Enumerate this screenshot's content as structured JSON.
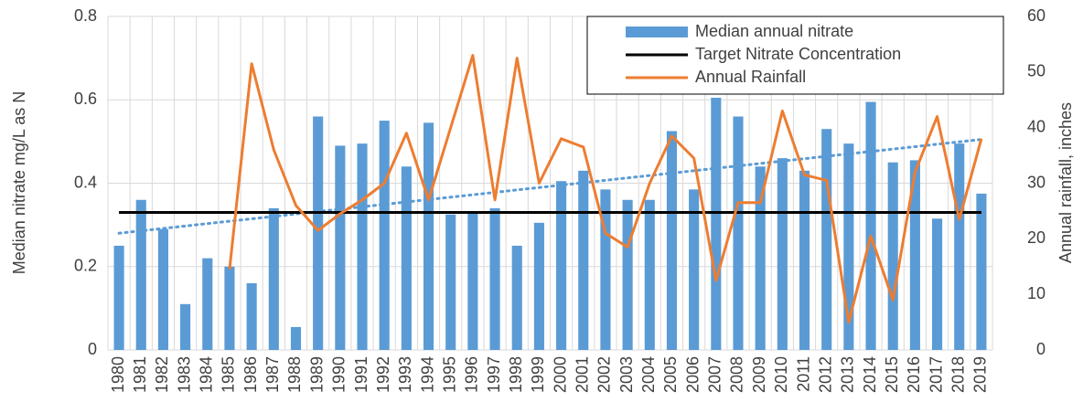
{
  "chart_data": {
    "type": "bar-line",
    "categories": [
      "1980",
      "1981",
      "1982",
      "1983",
      "1984",
      "1985",
      "1986",
      "1987",
      "1988",
      "1989",
      "1990",
      "1991",
      "1992",
      "1993",
      "1994",
      "1995",
      "1996",
      "1997",
      "1998",
      "1999",
      "2000",
      "2001",
      "2002",
      "2003",
      "2004",
      "2005",
      "2006",
      "2007",
      "2008",
      "2009",
      "2010",
      "2011",
      "2012",
      "2013",
      "2014",
      "2015",
      "2016",
      "2017",
      "2018",
      "2019"
    ],
    "series": [
      {
        "name": "Median annual nitrate",
        "type": "bar",
        "color": "#5b9bd5",
        "values": [
          0.25,
          0.36,
          0.29,
          0.11,
          0.22,
          0.2,
          0.16,
          0.34,
          0.055,
          0.56,
          0.49,
          0.495,
          0.55,
          0.44,
          0.545,
          0.325,
          0.33,
          0.34,
          0.25,
          0.305,
          0.405,
          0.43,
          0.385,
          0.36,
          0.36,
          0.525,
          0.385,
          0.605,
          0.56,
          0.44,
          0.46,
          0.43,
          0.53,
          0.495,
          0.595,
          0.45,
          0.455,
          0.315,
          0.495,
          0.375
        ]
      },
      {
        "name": "Target Nitrate Concentration",
        "type": "line",
        "color": "#000000",
        "values": [
          0.33,
          0.33,
          0.33,
          0.33,
          0.33,
          0.33,
          0.33,
          0.33,
          0.33,
          0.33,
          0.33,
          0.33,
          0.33,
          0.33,
          0.33,
          0.33,
          0.33,
          0.33,
          0.33,
          0.33,
          0.33,
          0.33,
          0.33,
          0.33,
          0.33,
          0.33,
          0.33,
          0.33,
          0.33,
          0.33,
          0.33,
          0.33,
          0.33,
          0.33,
          0.33,
          0.33,
          0.33,
          0.33,
          0.33,
          0.33
        ]
      },
      {
        "name": "Annual Rainfall",
        "type": "line",
        "color": "#ed7d31",
        "axis": "y2",
        "values": [
          null,
          null,
          null,
          null,
          null,
          14.5,
          51.5,
          36,
          26,
          21.5,
          24.5,
          27,
          30,
          39,
          27,
          40,
          53,
          27,
          52.5,
          30,
          38,
          36.5,
          21,
          18.5,
          30,
          38.5,
          34.5,
          12.5,
          26.5,
          26.5,
          43,
          31.5,
          30.5,
          5,
          20.5,
          9,
          32,
          42,
          23.5,
          38
        ]
      }
    ],
    "trendline": {
      "color": "#5b9bd5",
      "style": "dotted",
      "values": [
        0.28,
        0.505
      ]
    },
    "ylabel": "Median nitrate mg/L as N",
    "y2label": "Annual rainfall, inches",
    "ylim": [
      0,
      0.8
    ],
    "yticks": [
      0,
      0.2,
      0.4,
      0.6,
      0.8
    ],
    "y2lim": [
      0,
      60
    ],
    "y2ticks": [
      0,
      10,
      20,
      30,
      40,
      50,
      60
    ],
    "grid": true,
    "legend": "top-right"
  }
}
